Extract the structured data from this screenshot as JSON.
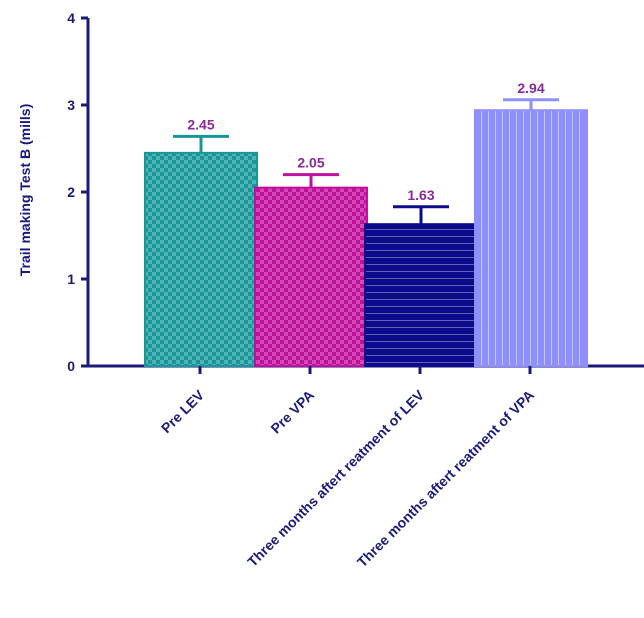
{
  "chart_data": {
    "type": "bar",
    "ylabel": "Trail making Test B (mills)",
    "categories": [
      "Pre LEV",
      "Pre VPA",
      "Three months aftert reatment of LEV",
      "Three months aftert reatment of VPA"
    ],
    "values": [
      2.45,
      2.05,
      1.63,
      2.94
    ],
    "errors": [
      0.19,
      0.15,
      0.2,
      0.12
    ],
    "colors": [
      "#17979a",
      "#c0109c",
      "#0b0b8c",
      "#8f8fff"
    ],
    "label_color": "#8b2a9b",
    "ylim": [
      0,
      4
    ],
    "yticks": [
      0,
      1,
      2,
      3,
      4
    ]
  }
}
